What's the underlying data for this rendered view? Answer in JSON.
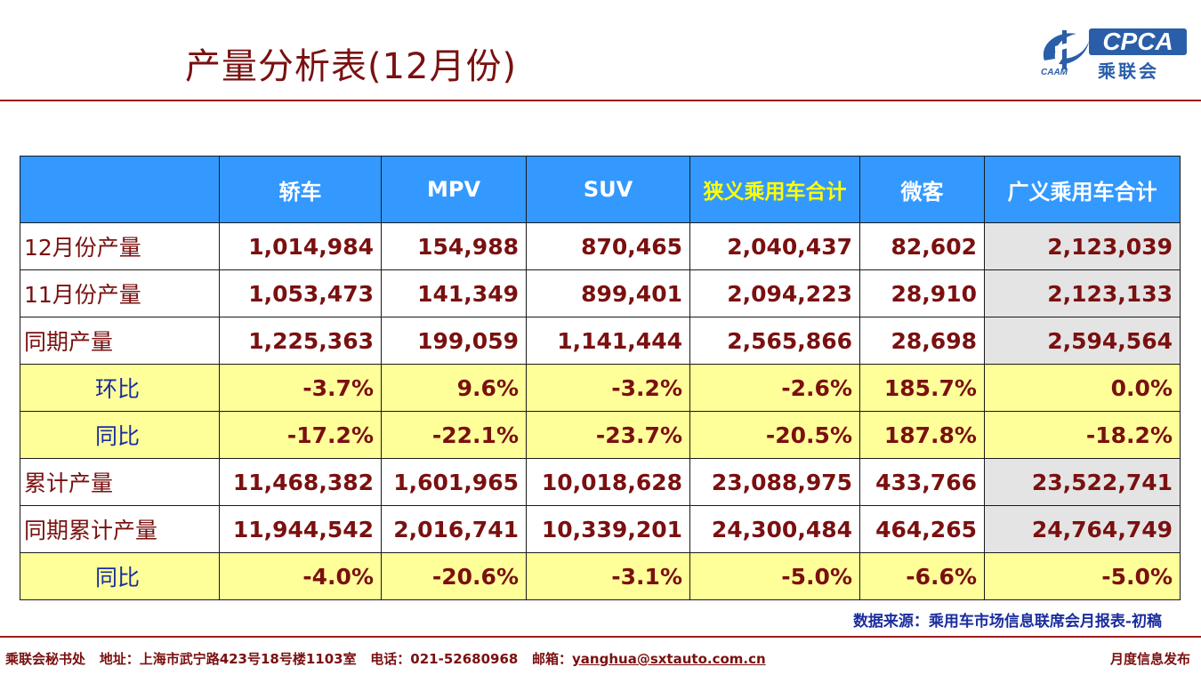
{
  "title": "产量分析表(12月份)",
  "logo": {
    "main": "CPCA",
    "cn": "乘联会",
    "sub": "CAAM"
  },
  "table": {
    "headers": [
      "",
      "轿车",
      "MPV",
      "SUV",
      "狭义乘用车合计",
      "微客",
      "广义乘用车合计"
    ],
    "rows": [
      {
        "label": "12月份产量",
        "type": "value",
        "cells": [
          "1,014,984",
          "154,988",
          "870,465",
          "2,040,437",
          "82,602",
          "2,123,039"
        ]
      },
      {
        "label": "11月份产量",
        "type": "value",
        "cells": [
          "1,053,473",
          "141,349",
          "899,401",
          "2,094,223",
          "28,910",
          "2,123,133"
        ]
      },
      {
        "label": "同期产量",
        "type": "value",
        "cells": [
          "1,225,363",
          "199,059",
          "1,141,444",
          "2,565,866",
          "28,698",
          "2,594,564"
        ]
      },
      {
        "label": "环比",
        "type": "ratio",
        "cells": [
          "-3.7%",
          "9.6%",
          "-3.2%",
          "-2.6%",
          "185.7%",
          "0.0%"
        ]
      },
      {
        "label": "同比",
        "type": "ratio",
        "cells": [
          "-17.2%",
          "-22.1%",
          "-23.7%",
          "-20.5%",
          "187.8%",
          "-18.2%"
        ]
      },
      {
        "label": "累计产量",
        "type": "value",
        "cells": [
          "11,468,382",
          "1,601,965",
          "10,018,628",
          "23,088,975",
          "433,766",
          "23,522,741"
        ]
      },
      {
        "label": "同期累计产量",
        "type": "value",
        "cells": [
          "11,944,542",
          "2,016,741",
          "10,339,201",
          "24,300,484",
          "464,265",
          "24,764,749"
        ]
      },
      {
        "label": "同比",
        "type": "ratio",
        "cells": [
          "-4.0%",
          "-20.6%",
          "-3.1%",
          "-5.0%",
          "-6.6%",
          "-5.0%"
        ]
      }
    ]
  },
  "source": "数据来源：乘用车市场信息联席会月报表-初稿",
  "footer": {
    "org": "乘联会秘书处",
    "address": "地址：上海市武宁路423号18号楼1103室",
    "phone": "电话：021-52680968",
    "email_label": "邮箱：",
    "email": "yanghua@sxtauto.com.cn",
    "right": "月度信息发布"
  },
  "colors": {
    "header_bg": "#3399ff",
    "ratio_bg": "#ffff99",
    "total_bg": "#e4e4e4",
    "text": "#7a1010",
    "ratio_label": "#1a2d9e",
    "rule": "#9b1c1c"
  }
}
